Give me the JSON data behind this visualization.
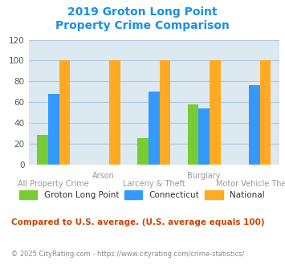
{
  "title_line1": "2019 Groton Long Point",
  "title_line2": "Property Crime Comparison",
  "title_color": "#1a8fe0",
  "categories": [
    "All Property Crime",
    "Arson",
    "Larceny & Theft",
    "Burglary",
    "Motor Vehicle Theft"
  ],
  "series": {
    "Groton Long Point": [
      28,
      0,
      25,
      58,
      0
    ],
    "Connecticut": [
      68,
      0,
      70,
      54,
      76
    ],
    "National": [
      100,
      100,
      100,
      100,
      100
    ]
  },
  "colors": {
    "Groton Long Point": "#77cc33",
    "Connecticut": "#3399ff",
    "National": "#ffaa22"
  },
  "ylim": [
    0,
    120
  ],
  "yticks": [
    0,
    20,
    40,
    60,
    80,
    100,
    120
  ],
  "plot_bg_color": "#dce9f0",
  "grid_color": "#b0c8d8",
  "legend_labels": [
    "Groton Long Point",
    "Connecticut",
    "National"
  ],
  "note_text": "Compared to U.S. average. (U.S. average equals 100)",
  "note_color": "#cc4400",
  "footer_text": "© 2025 CityRating.com - https://www.cityrating.com/crime-statistics/",
  "footer_color": "#888888",
  "bar_width": 0.22
}
